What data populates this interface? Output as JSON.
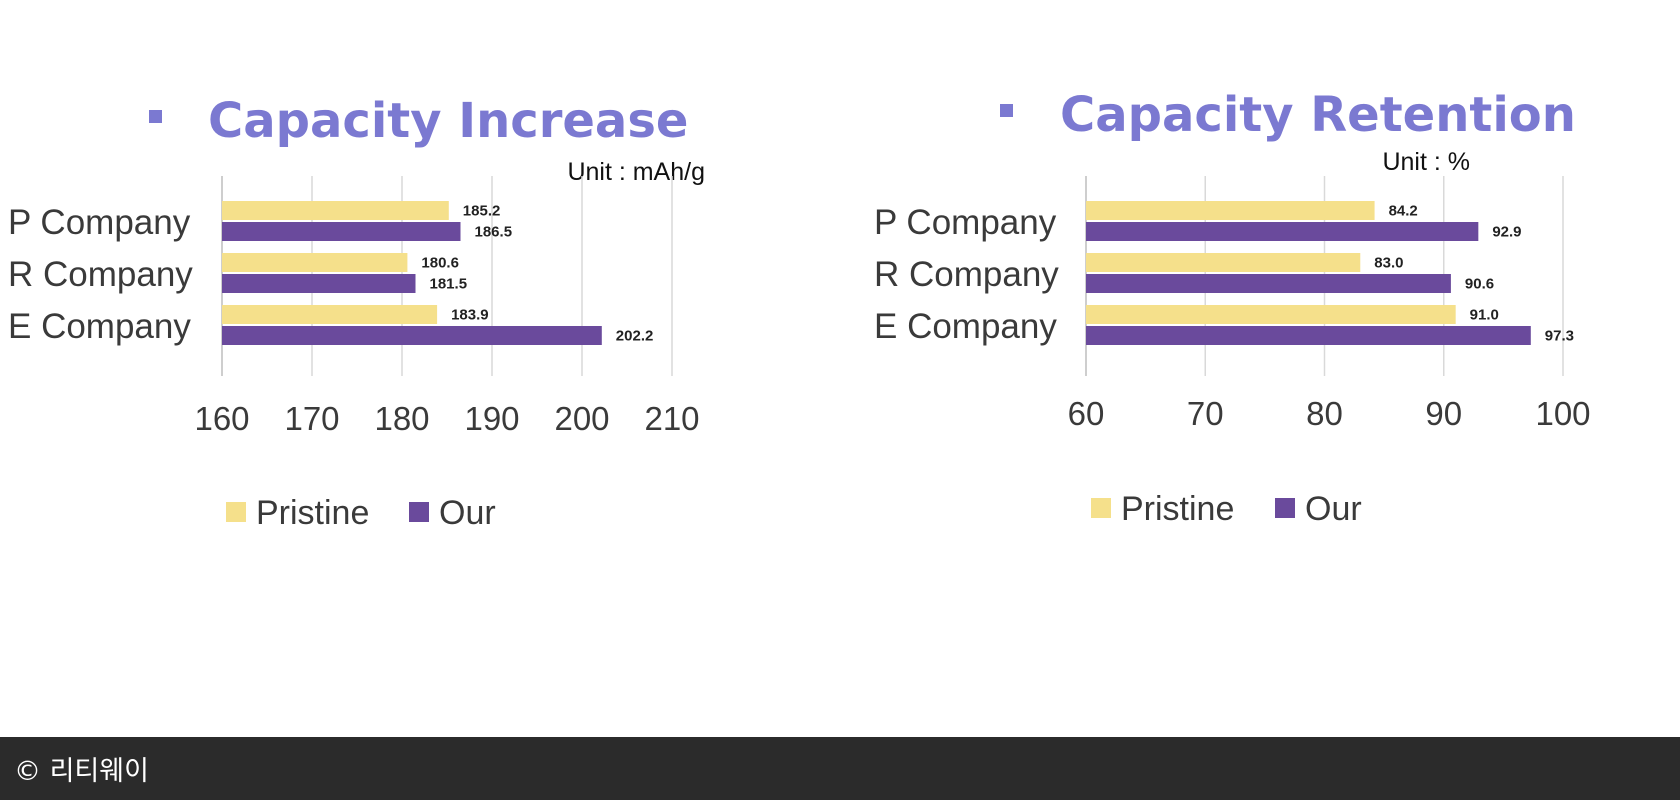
{
  "chart_data": [
    {
      "type": "bar",
      "orientation": "horizontal",
      "title": "Capacity Increase",
      "unit_label": "Unit : mAh/g",
      "categories": [
        "P Company",
        "R Company",
        "E Company"
      ],
      "series": [
        {
          "name": "Pristine",
          "color": "#f5e08b",
          "values": [
            185.2,
            180.6,
            183.9
          ]
        },
        {
          "name": "Our",
          "color": "#6a4a9c",
          "values": [
            186.5,
            181.5,
            202.2
          ]
        }
      ],
      "xlim": [
        160,
        210
      ],
      "xticks": [
        160,
        170,
        180,
        190,
        200,
        210
      ],
      "grid": true,
      "legend_position": "bottom"
    },
    {
      "type": "bar",
      "orientation": "horizontal",
      "title": "Capacity Retention",
      "unit_label": "Unit : %",
      "categories": [
        "P Company",
        "R Company",
        "E Company"
      ],
      "series": [
        {
          "name": "Pristine",
          "color": "#f5e08b",
          "values": [
            84.2,
            83.0,
            91.0
          ]
        },
        {
          "name": "Our",
          "color": "#6a4a9c",
          "values": [
            92.9,
            90.6,
            97.3
          ]
        }
      ],
      "xlim": [
        60,
        100
      ],
      "xticks": [
        60,
        70,
        80,
        90,
        100
      ],
      "grid": true,
      "legend_position": "bottom"
    }
  ],
  "footer": {
    "copyright": "© 리티웨이"
  }
}
